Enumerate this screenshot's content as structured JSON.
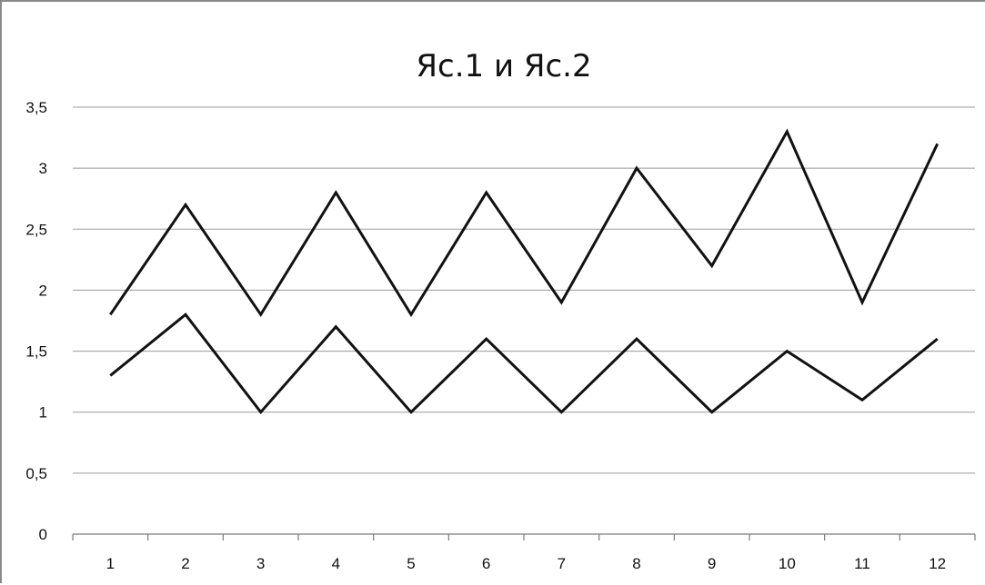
{
  "chart_data": {
    "type": "line",
    "title": "Яс.1 и Яс.2",
    "xlabel": "",
    "ylabel": "",
    "categories": [
      "1",
      "2",
      "3",
      "4",
      "5",
      "6",
      "7",
      "8",
      "9",
      "10",
      "11",
      "12"
    ],
    "y_ticks": [
      "0",
      "0,5",
      "1",
      "1,5",
      "2",
      "2,5",
      "3",
      "3,5"
    ],
    "y_tick_values": [
      0,
      0.5,
      1,
      1.5,
      2,
      2.5,
      3,
      3.5
    ],
    "ylim": [
      0,
      3.5
    ],
    "grid": true,
    "legend": "none",
    "series": [
      {
        "values": [
          1.8,
          2.7,
          1.8,
          2.8,
          1.8,
          2.8,
          1.9,
          3.0,
          2.2,
          3.3,
          1.9,
          3.2
        ]
      },
      {
        "values": [
          1.3,
          1.8,
          1.0,
          1.7,
          1.0,
          1.6,
          1.0,
          1.6,
          1.0,
          1.5,
          1.1,
          1.6
        ]
      }
    ],
    "line_color": "#111111"
  }
}
